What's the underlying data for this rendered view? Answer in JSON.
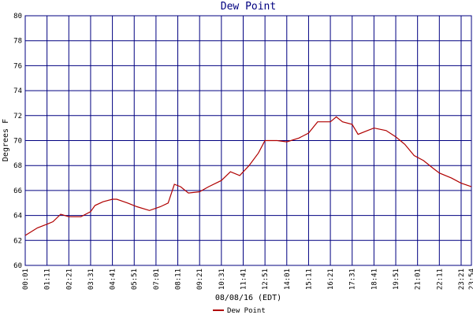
{
  "chart_data": {
    "type": "line",
    "title": "Dew Point",
    "x_label": "08/08/16 (EDT)",
    "y_label": "Degrees F",
    "x": [
      1,
      40,
      71,
      90,
      115,
      141,
      180,
      211,
      225,
      251,
      281,
      295,
      330,
      360,
      400,
      435,
      460,
      480,
      500,
      525,
      561,
      590,
      631,
      660,
      690,
      720,
      750,
      771,
      810,
      841,
      880,
      911,
      940,
      981,
      1000,
      1020,
      1051,
      1070,
      1100,
      1121,
      1160,
      1191,
      1220,
      1250,
      1280,
      1310,
      1331,
      1370,
      1400,
      1434
    ],
    "series": [
      {
        "name": "Dew Point",
        "color": "#b00000",
        "values": [
          62.4,
          63.0,
          63.3,
          63.5,
          64.1,
          63.9,
          63.9,
          64.3,
          64.8,
          65.1,
          65.3,
          65.3,
          65.0,
          64.7,
          64.4,
          64.7,
          65.0,
          66.5,
          66.3,
          65.8,
          65.9,
          66.3,
          66.8,
          67.5,
          67.2,
          68.0,
          69.0,
          70.0,
          70.0,
          69.9,
          70.2,
          70.6,
          71.5,
          71.5,
          71.9,
          71.5,
          71.3,
          70.5,
          70.8,
          71.0,
          70.8,
          70.3,
          69.7,
          68.8,
          68.4,
          67.8,
          67.4,
          67.0,
          66.6,
          66.3
        ]
      }
    ],
    "xlim": [
      1,
      1434
    ],
    "xticks": [
      {
        "value": 1,
        "label": "00:01"
      },
      {
        "value": 71,
        "label": "01:11"
      },
      {
        "value": 141,
        "label": "02:21"
      },
      {
        "value": 211,
        "label": "03:31"
      },
      {
        "value": 281,
        "label": "04:41"
      },
      {
        "value": 351,
        "label": "05:51"
      },
      {
        "value": 421,
        "label": "07:01"
      },
      {
        "value": 491,
        "label": "08:11"
      },
      {
        "value": 561,
        "label": "09:21"
      },
      {
        "value": 631,
        "label": "10:31"
      },
      {
        "value": 701,
        "label": "11:41"
      },
      {
        "value": 771,
        "label": "12:51"
      },
      {
        "value": 841,
        "label": "14:01"
      },
      {
        "value": 911,
        "label": "15:11"
      },
      {
        "value": 981,
        "label": "16:21"
      },
      {
        "value": 1051,
        "label": "17:31"
      },
      {
        "value": 1121,
        "label": "18:41"
      },
      {
        "value": 1191,
        "label": "19:51"
      },
      {
        "value": 1261,
        "label": "21:01"
      },
      {
        "value": 1331,
        "label": "22:11"
      },
      {
        "value": 1401,
        "label": "23:21"
      },
      {
        "value": 1434,
        "label": "23:54"
      }
    ],
    "ylim": [
      60,
      80
    ],
    "yticks": [
      60,
      62,
      64,
      66,
      68,
      70,
      72,
      74,
      76,
      78,
      80
    ],
    "grid": true,
    "grid_color": "#000080",
    "legend": "bottom"
  }
}
